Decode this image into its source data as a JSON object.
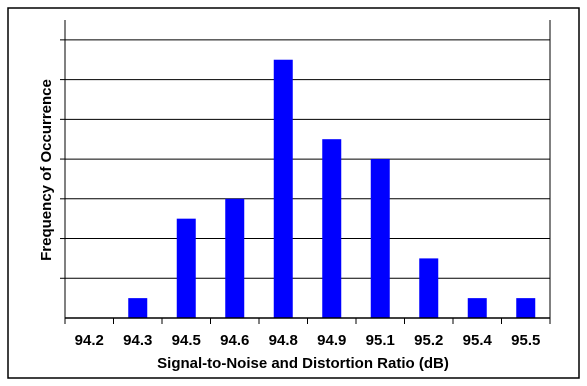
{
  "chart_data": {
    "type": "bar",
    "categories": [
      "94.2",
      "94.3",
      "94.5",
      "94.6",
      "94.8",
      "94.9",
      "95.1",
      "95.2",
      "95.4",
      "95.5"
    ],
    "values": [
      0,
      1,
      5,
      6,
      13,
      9,
      8,
      3,
      1,
      1
    ],
    "title": "",
    "xlabel": "Signal-to-Noise and Distortion Ratio (dB)",
    "ylabel": "Frequency of Occurrence",
    "ylim": [
      0,
      15
    ],
    "y_tick_labels_shown": false,
    "grid": "horizontal",
    "legend": "none",
    "colors": {
      "bar": "#0000ff",
      "grid": "#000000",
      "frame": "#000000",
      "background": "#ffffff"
    }
  }
}
